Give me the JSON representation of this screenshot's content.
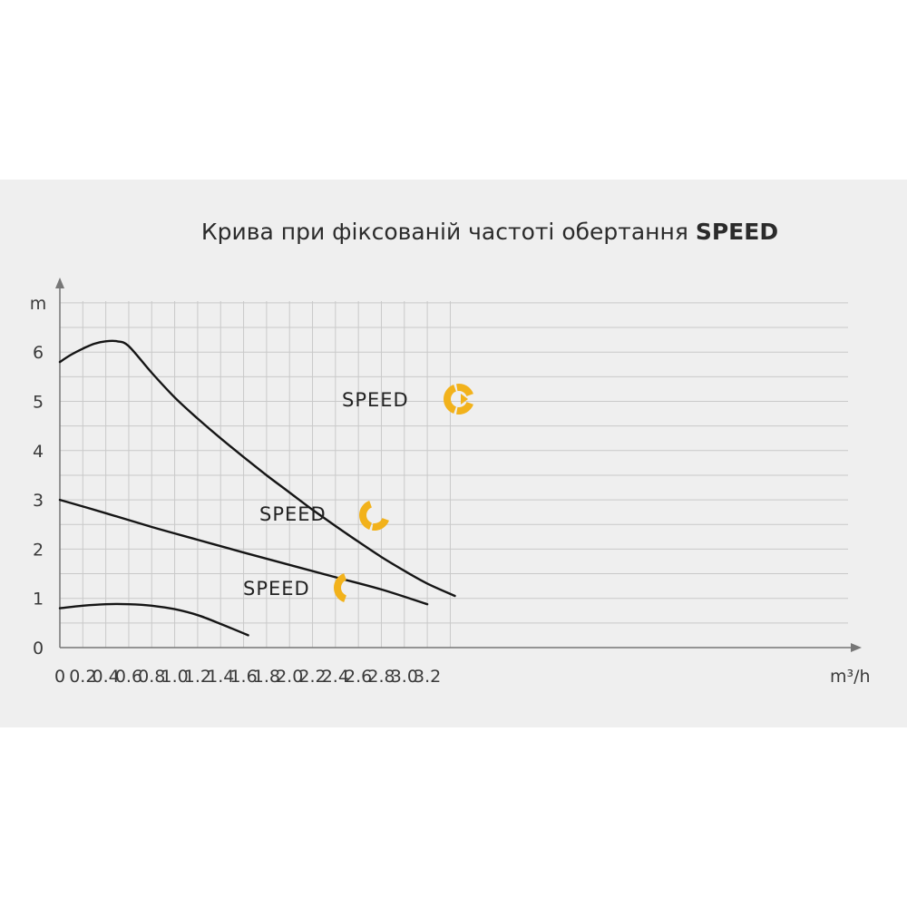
{
  "chart_data": {
    "type": "line",
    "title": "Крива при фіксованій частоті обертання",
    "title_bold": "SPEED",
    "xlabel": "m³/h",
    "ylabel": "m",
    "xlim": [
      0,
      3.5
    ],
    "ylim": [
      0,
      7
    ],
    "grid": true,
    "x_ticks": [
      "0",
      "0.2",
      "0.4",
      "0.6",
      "0.8",
      "1.0",
      "1.2",
      "1.4",
      "1.6",
      "1.8",
      "2.0",
      "2.2",
      "2.4",
      "2.6",
      "2.8",
      "3.0",
      "3.2"
    ],
    "y_ticks": [
      "0",
      "1",
      "2",
      "3",
      "4",
      "5",
      "6"
    ],
    "accent_color": "#f2b21b",
    "series": [
      {
        "name": "SPEED",
        "icon_segments": 3,
        "x": [
          0,
          0.1,
          0.2,
          0.3,
          0.4,
          0.5,
          0.6,
          0.8,
          1.0,
          1.2,
          1.4,
          1.6,
          1.8,
          2.0,
          2.2,
          2.4,
          2.6,
          2.8,
          3.0,
          3.2,
          3.44
        ],
        "y": [
          5.8,
          5.95,
          6.07,
          6.17,
          6.22,
          6.22,
          6.12,
          5.58,
          5.08,
          4.65,
          4.25,
          3.87,
          3.5,
          3.15,
          2.8,
          2.47,
          2.15,
          1.84,
          1.56,
          1.3,
          1.05
        ]
      },
      {
        "name": "SPEED",
        "icon_segments": 2,
        "x": [
          0,
          0.4,
          0.8,
          1.2,
          1.6,
          2.0,
          2.4,
          2.8,
          3.2
        ],
        "y": [
          3.0,
          2.73,
          2.45,
          2.19,
          1.93,
          1.68,
          1.43,
          1.18,
          0.88
        ]
      },
      {
        "name": "SPEED",
        "icon_segments": 1,
        "x": [
          0,
          0.2,
          0.4,
          0.6,
          0.8,
          1.0,
          1.2,
          1.4,
          1.64
        ],
        "y": [
          0.8,
          0.85,
          0.88,
          0.88,
          0.85,
          0.78,
          0.66,
          0.48,
          0.25
        ]
      }
    ]
  }
}
